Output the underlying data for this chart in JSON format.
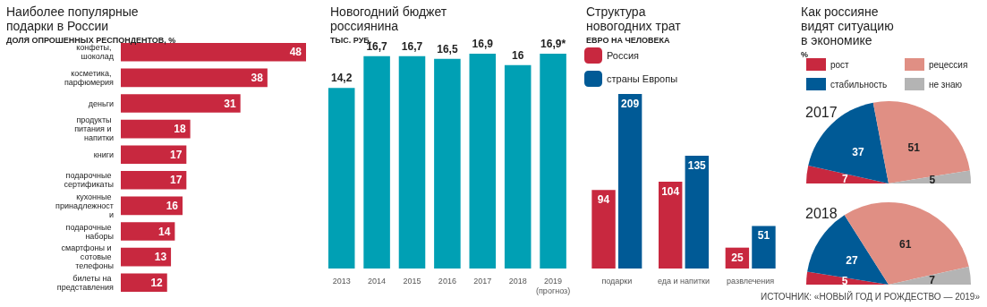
{
  "chart_data": [
    {
      "type": "bar",
      "orientation": "horizontal",
      "title": "Наиболее популярные подарки в России",
      "subtitle": "ДОЛЯ ОПРОШЕННЫХ РЕСПОНДЕНТОВ, %",
      "categories": [
        "конфеты, шоколад",
        "косметика, парфюмерия",
        "деньги",
        "продукты питания и напитки",
        "книги",
        "подарочные сертификаты",
        "кухонные принадлежности",
        "подарочные наборы",
        "смартфоны и сотовые телефоны",
        "билеты на представления"
      ],
      "values": [
        48,
        38,
        31,
        18,
        17,
        17,
        16,
        14,
        13,
        12
      ],
      "color": "#c8283f",
      "data_labels": true
    },
    {
      "type": "bar",
      "title": "Новогодний бюджет россиянина",
      "subtitle": "ТЫС. РУБ.",
      "categories": [
        "2013",
        "2014",
        "2015",
        "2016",
        "2017",
        "2018",
        "2019\n(прогноз)"
      ],
      "values": [
        14.2,
        16.7,
        16.7,
        16.5,
        16.9,
        16,
        16.9
      ],
      "color": "#00a0b4",
      "value_labels": [
        "14,2",
        "16,7",
        "16,7",
        "16,5",
        "16,9",
        "16",
        "16,9*"
      ]
    },
    {
      "type": "bar",
      "title": "Структура новогодних трат",
      "subtitle": "ЕВРО НА ЧЕЛОВЕКА",
      "categories": [
        "подарки",
        "еда и напитки",
        "развлечения"
      ],
      "series": [
        {
          "name": "Россия",
          "color": "#c8283f",
          "values": [
            94,
            104,
            25
          ]
        },
        {
          "name": "страны Европы",
          "color": "#005a96",
          "values": [
            209,
            135,
            51
          ]
        }
      ],
      "data_labels": true,
      "legend": "top left"
    },
    {
      "type": "pie",
      "title": "Как россияне видят ситуацию в экономике",
      "subtitle": "%",
      "categories": [
        "рост",
        "стабильность",
        "рецессия",
        "не знаю"
      ],
      "colors": [
        "#c8283f",
        "#005a96",
        "#e08f84",
        "#b4b4b4"
      ],
      "series": [
        {
          "name": "2017",
          "values": [
            7,
            37,
            51,
            5
          ]
        },
        {
          "name": "2018",
          "values": [
            5,
            27,
            61,
            7
          ]
        }
      ],
      "data_labels": true,
      "legend": "top",
      "annotations": [
        "ИСТОЧНИК: «НОВЫЙ ГОД И РОЖДЕСТВО — 2019»"
      ]
    }
  ]
}
